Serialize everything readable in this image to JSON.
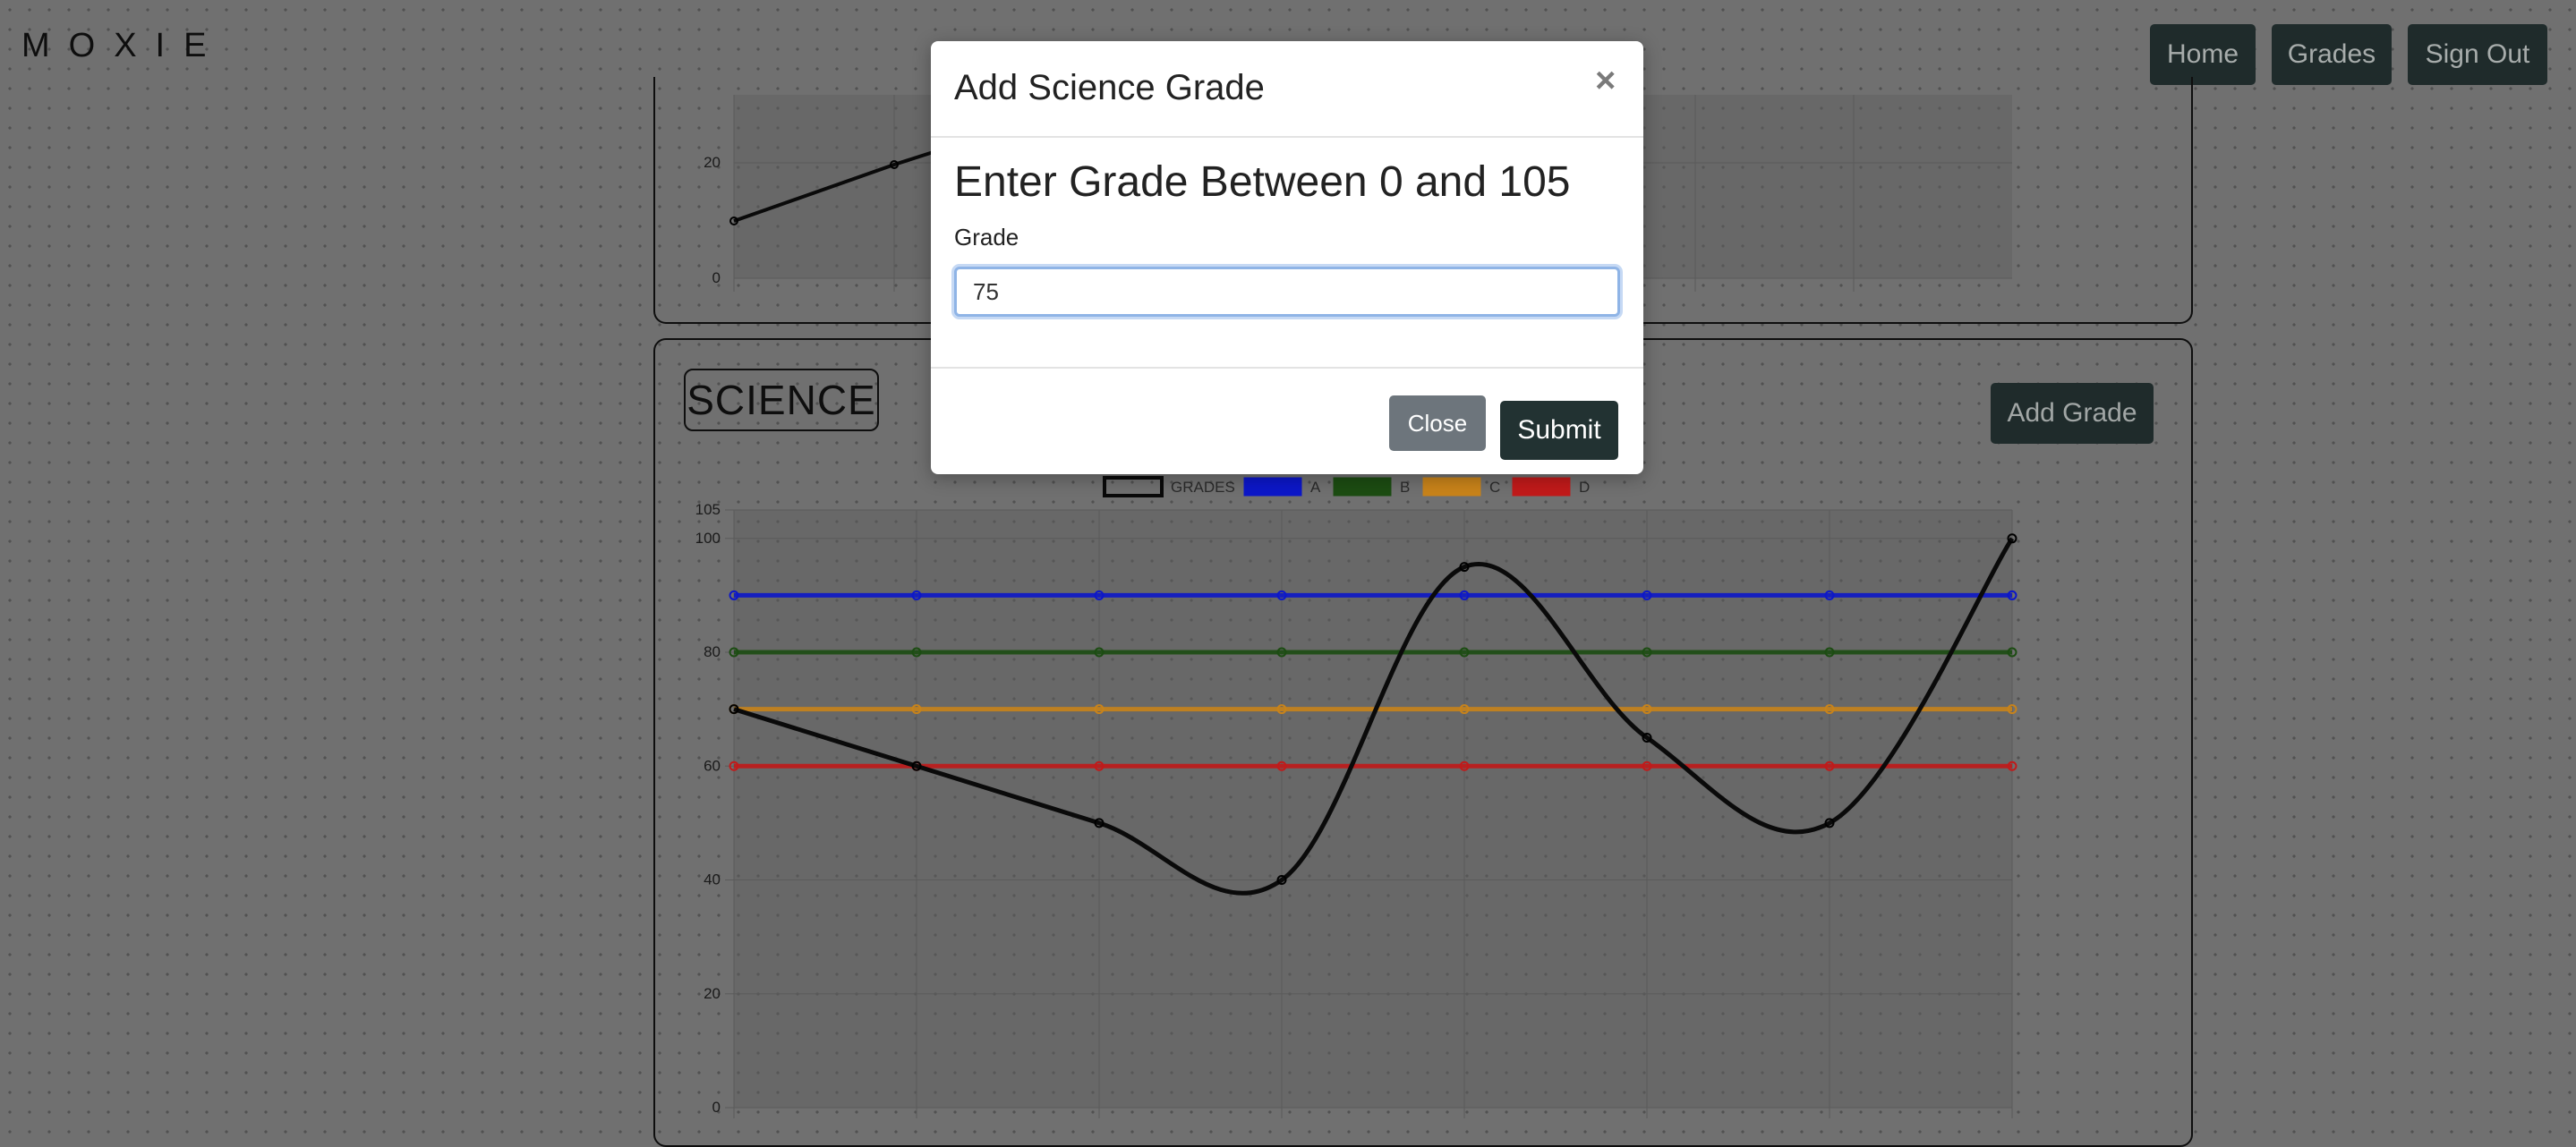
{
  "navbar": {
    "brand": "MOXIE",
    "home": "Home",
    "grades": "Grades",
    "sign_out": "Sign Out"
  },
  "top_chart": {
    "yticks": [
      "20",
      "0"
    ],
    "visible_points": [
      {
        "x": 0,
        "y": 10
      },
      {
        "x": 1,
        "y": 20
      }
    ]
  },
  "science": {
    "subject_label": "SCIENCE",
    "add_grade_label": "Add Grade"
  },
  "modal": {
    "title": "Add Science Grade",
    "close_symbol": "×",
    "heading": "Enter Grade Between 0 and 105",
    "field_label": "Grade",
    "field_value": "75",
    "close_label": "Close",
    "submit_label": "Submit"
  },
  "chart_data": {
    "type": "line",
    "x": [
      1,
      2,
      3,
      4,
      5,
      6,
      7,
      8
    ],
    "ylim": [
      0,
      105
    ],
    "yticks": [
      0,
      20,
      40,
      60,
      80,
      100,
      105
    ],
    "grid": true,
    "legend_position": "top",
    "series": [
      {
        "name": "GRADES",
        "color": "#0a0a0a",
        "values": [
          70,
          60,
          50,
          40,
          95,
          65,
          50,
          100
        ]
      },
      {
        "name": "A",
        "color": "#0c17c9",
        "values": [
          90,
          90,
          90,
          90,
          90,
          90,
          90,
          90
        ]
      },
      {
        "name": "B",
        "color": "#1c4c12",
        "values": [
          80,
          80,
          80,
          80,
          80,
          80,
          80,
          80
        ]
      },
      {
        "name": "C",
        "color": "#c8831a",
        "values": [
          70,
          70,
          70,
          70,
          70,
          70,
          70,
          70
        ]
      },
      {
        "name": "D",
        "color": "#c11a1a",
        "values": [
          60,
          60,
          60,
          60,
          60,
          60,
          60,
          60
        ]
      }
    ]
  }
}
